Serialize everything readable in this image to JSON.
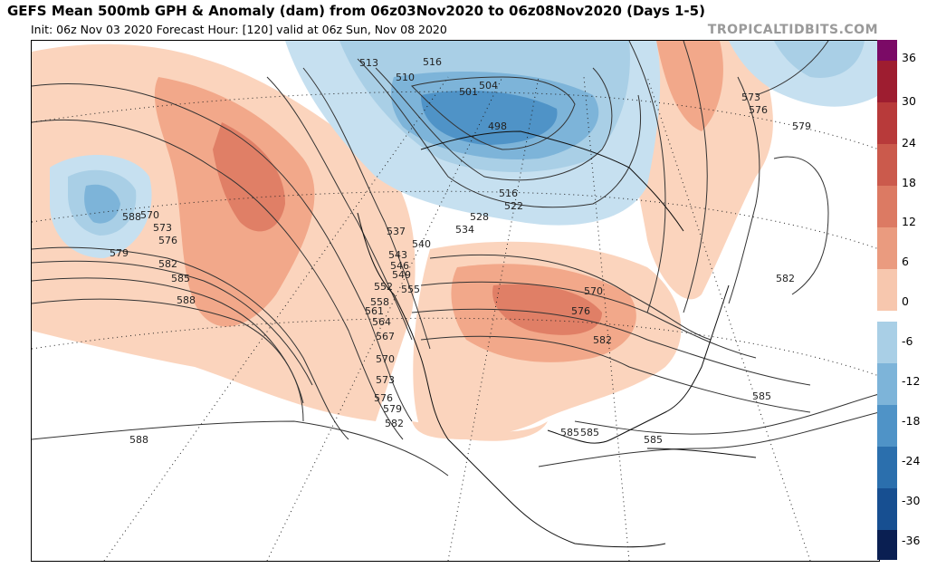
{
  "header": {
    "title": "GEFS Mean 500mb GPH & Anomaly (dam) from 06z03Nov2020 to 06z08Nov2020 (Days 1-5)",
    "init": "Init: 06z Nov 03 2020   Forecast Hour: [120]   valid at 06z Sun, Nov 08 2020",
    "brand": "TROPICALTIDBITS.COM"
  },
  "colorbar": {
    "labels": [
      "36",
      "30",
      "24",
      "18",
      "12",
      "6",
      "0",
      "-6",
      "-12",
      "-18",
      "-24",
      "-30",
      "-36"
    ],
    "colors": [
      "#7b0a66",
      "#9e1d30",
      "#b83a3a",
      "#cb5a4c",
      "#dc7a63",
      "#ea9b7f",
      "#f7c7ae",
      "#ffffff",
      "#a9cfe6",
      "#7db4d9",
      "#4f93c7",
      "#2b6fad",
      "#174f91",
      "#0d3473",
      "#0a1f52"
    ]
  },
  "contour_labels": [
    "513",
    "516",
    "510",
    "501",
    "504",
    "498",
    "516",
    "522",
    "528",
    "534",
    "537",
    "540",
    "543",
    "546",
    "549",
    "552",
    "555",
    "558",
    "561",
    "564",
    "567",
    "570",
    "573",
    "576",
    "579",
    "582",
    "585",
    "588",
    "570",
    "573",
    "576",
    "579",
    "582",
    "585",
    "588",
    "570",
    "576",
    "582",
    "573",
    "576",
    "579",
    "582",
    "585",
    "585",
    "585",
    "588"
  ]
}
